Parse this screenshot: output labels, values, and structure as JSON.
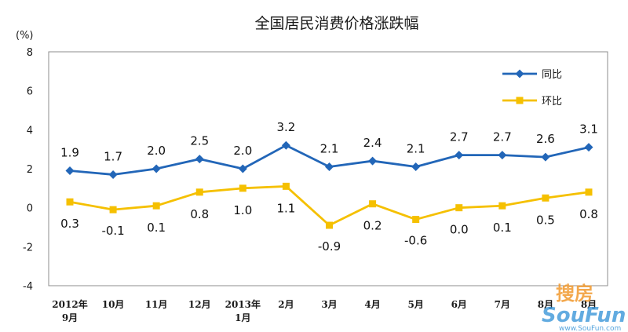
{
  "chart_data": {
    "type": "line",
    "title": "全国居民消费价格涨跌幅",
    "unit_label": "(%)",
    "ylim": [
      -4,
      8
    ],
    "yticks": [
      8,
      6,
      4,
      2,
      0,
      -2,
      -4
    ],
    "categories": [
      [
        "2012年",
        "9月"
      ],
      [
        "10月"
      ],
      [
        "11月"
      ],
      [
        "12月"
      ],
      [
        "2013年",
        "1月"
      ],
      [
        "2月"
      ],
      [
        "3月"
      ],
      [
        "4月"
      ],
      [
        "5月"
      ],
      [
        "6月"
      ],
      [
        "7月"
      ],
      [
        "8月"
      ],
      [
        "8月"
      ]
    ],
    "series": [
      {
        "name": "同比",
        "color": "#2266b8",
        "marker": "diamond",
        "values": [
          1.9,
          1.7,
          2.0,
          2.5,
          2.0,
          3.2,
          2.1,
          2.4,
          2.1,
          2.7,
          2.7,
          2.6,
          3.1
        ],
        "labels": [
          "1.9",
          "1.7",
          "2.0",
          "2.5",
          "2.0",
          "3.2",
          "2.1",
          "2.4",
          "2.1",
          "2.7",
          "2.7",
          "2.6",
          "3.1"
        ]
      },
      {
        "name": "环比",
        "color": "#f5c000",
        "marker": "square",
        "values": [
          0.3,
          -0.1,
          0.1,
          0.8,
          1.0,
          1.1,
          -0.9,
          0.2,
          -0.6,
          0.0,
          0.1,
          0.5,
          0.8
        ],
        "labels": [
          "0.3",
          "-0.1",
          "0.1",
          "0.8",
          "1.0",
          "1.1",
          "-0.9",
          "0.2",
          "-0.6",
          "0.0",
          "0.1",
          "0.5",
          "0.8"
        ]
      }
    ],
    "legend_position": "top-right",
    "grid": false
  },
  "watermark": {
    "line1": "搜房",
    "line2": "SouFun",
    "line3": "www.SouFun.com"
  }
}
